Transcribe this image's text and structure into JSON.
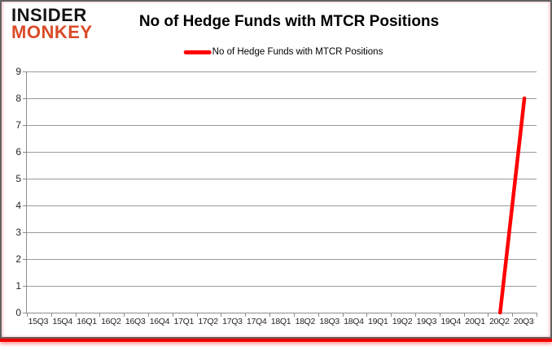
{
  "logo": {
    "line1": "INSIDER",
    "line2": "MONKEY",
    "line1_color": "#141414",
    "line2_color": "#da4b28"
  },
  "header": {
    "title": "No of Hedge Funds with MTCR Positions"
  },
  "legend": {
    "label": "No of Hedge Funds with MTCR Positions",
    "swatch_color": "#ff0000"
  },
  "frame": {
    "border_color": "#636363",
    "bottom_bar_color": "#ee0000"
  },
  "chart_data": {
    "type": "line",
    "title": "No of Hedge Funds with MTCR Positions",
    "categories": [
      "15Q3",
      "15Q4",
      "16Q1",
      "16Q2",
      "16Q3",
      "16Q4",
      "17Q1",
      "17Q2",
      "17Q3",
      "17Q4",
      "18Q1",
      "18Q2",
      "18Q3",
      "18Q4",
      "19Q1",
      "19Q2",
      "19Q3",
      "19Q4",
      "20Q1",
      "20Q2",
      "20Q3"
    ],
    "series": [
      {
        "name": "No of Hedge Funds with MTCR Positions",
        "color": "#ff0000",
        "values": [
          null,
          null,
          null,
          null,
          null,
          null,
          null,
          null,
          null,
          null,
          null,
          null,
          null,
          null,
          null,
          null,
          null,
          null,
          null,
          0,
          8
        ]
      }
    ],
    "ylim": [
      0,
      9
    ],
    "yticks": [
      0,
      1,
      2,
      3,
      4,
      5,
      6,
      7,
      8,
      9
    ],
    "grid": "horizontal",
    "gridline_color": "#9a9a9a",
    "legend_position": "top",
    "xlabel": "",
    "ylabel": ""
  }
}
